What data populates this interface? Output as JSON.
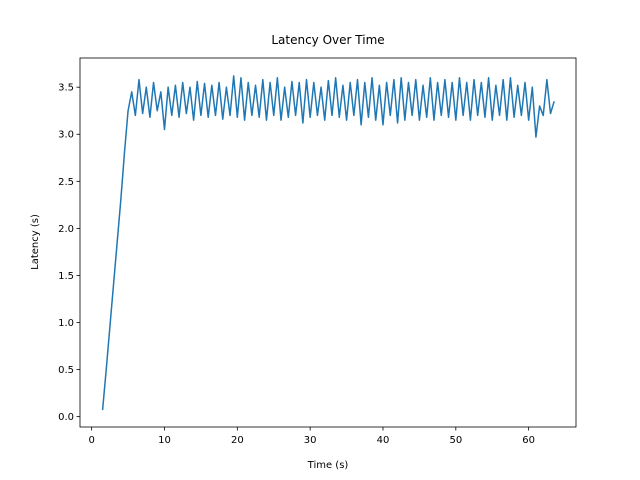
{
  "chart_data": {
    "type": "line",
    "title": "Latency Over Time",
    "x_label": "Time (s)",
    "y_label": "Latency (s)",
    "color": "#1f77b4",
    "x": [
      1.5,
      2,
      2.5,
      3,
      3.5,
      4,
      4.5,
      5,
      5.5,
      6,
      6.5,
      7,
      7.5,
      8,
      8.5,
      9,
      9.5,
      10,
      10.5,
      11,
      11.5,
      12,
      12.5,
      13,
      13.5,
      14,
      14.5,
      15,
      15.5,
      16,
      16.5,
      17,
      17.5,
      18,
      18.5,
      19,
      19.5,
      20,
      20.5,
      21,
      21.5,
      22,
      22.5,
      23,
      23.5,
      24,
      24.5,
      25,
      25.5,
      26,
      26.5,
      27,
      27.5,
      28,
      28.5,
      29,
      29.5,
      30,
      30.5,
      31,
      31.5,
      32,
      32.5,
      33,
      33.5,
      34,
      34.5,
      35,
      35.5,
      36,
      36.5,
      37,
      37.5,
      38,
      38.5,
      39,
      39.5,
      40,
      40.5,
      41,
      41.5,
      42,
      42.5,
      43,
      43.5,
      44,
      44.5,
      45,
      45.5,
      46,
      46.5,
      47,
      47.5,
      48,
      48.5,
      49,
      49.5,
      50,
      50.5,
      51,
      51.5,
      52,
      52.5,
      53,
      53.5,
      54,
      54.5,
      55,
      55.5,
      56,
      56.5,
      57,
      57.5,
      58,
      58.5,
      59,
      59.5,
      60,
      60.5,
      61,
      61.5,
      62,
      62.5,
      63,
      63.5
    ],
    "values": [
      0.07,
      0.5,
      0.95,
      1.4,
      1.85,
      2.3,
      2.8,
      3.25,
      3.45,
      3.2,
      3.58,
      3.22,
      3.5,
      3.18,
      3.55,
      3.25,
      3.45,
      3.05,
      3.5,
      3.2,
      3.52,
      3.18,
      3.55,
      3.22,
      3.5,
      3.15,
      3.56,
      3.2,
      3.54,
      3.18,
      3.52,
      3.2,
      3.55,
      3.16,
      3.5,
      3.2,
      3.62,
      3.18,
      3.6,
      3.15,
      3.55,
      3.2,
      3.52,
      3.18,
      3.58,
      3.15,
      3.55,
      3.2,
      3.6,
      3.15,
      3.5,
      3.18,
      3.56,
      3.2,
      3.55,
      3.12,
      3.58,
      3.18,
      3.55,
      3.2,
      3.5,
      3.15,
      3.57,
      3.2,
      3.6,
      3.18,
      3.52,
      3.15,
      3.55,
      3.2,
      3.58,
      3.1,
      3.55,
      3.18,
      3.6,
      3.15,
      3.52,
      3.1,
      3.55,
      3.2,
      3.58,
      3.12,
      3.6,
      3.15,
      3.55,
      3.2,
      3.58,
      3.15,
      3.52,
      3.18,
      3.6,
      3.15,
      3.55,
      3.2,
      3.58,
      3.18,
      3.55,
      3.15,
      3.6,
      3.2,
      3.55,
      3.15,
      3.58,
      3.2,
      3.55,
      3.18,
      3.6,
      3.15,
      3.52,
      3.2,
      3.58,
      3.15,
      3.6,
      3.18,
      3.52,
      3.2,
      3.55,
      3.15,
      3.5,
      2.97,
      3.3,
      3.2,
      3.58,
      3.22,
      3.35
    ],
    "xlim": [
      -1.6,
      66.5
    ],
    "xticks": [
      0,
      10,
      20,
      30,
      40,
      50,
      60
    ],
    "ylim": [
      -0.11,
      3.81
    ],
    "yticks": [
      {
        "value": 0,
        "label": "0.0"
      },
      0.5,
      {
        "value": 1,
        "label": "1.0"
      },
      1.5,
      {
        "value": 2,
        "label": "2.0"
      },
      2.5,
      {
        "value": 3,
        "label": "3.0"
      },
      3.5
    ]
  }
}
